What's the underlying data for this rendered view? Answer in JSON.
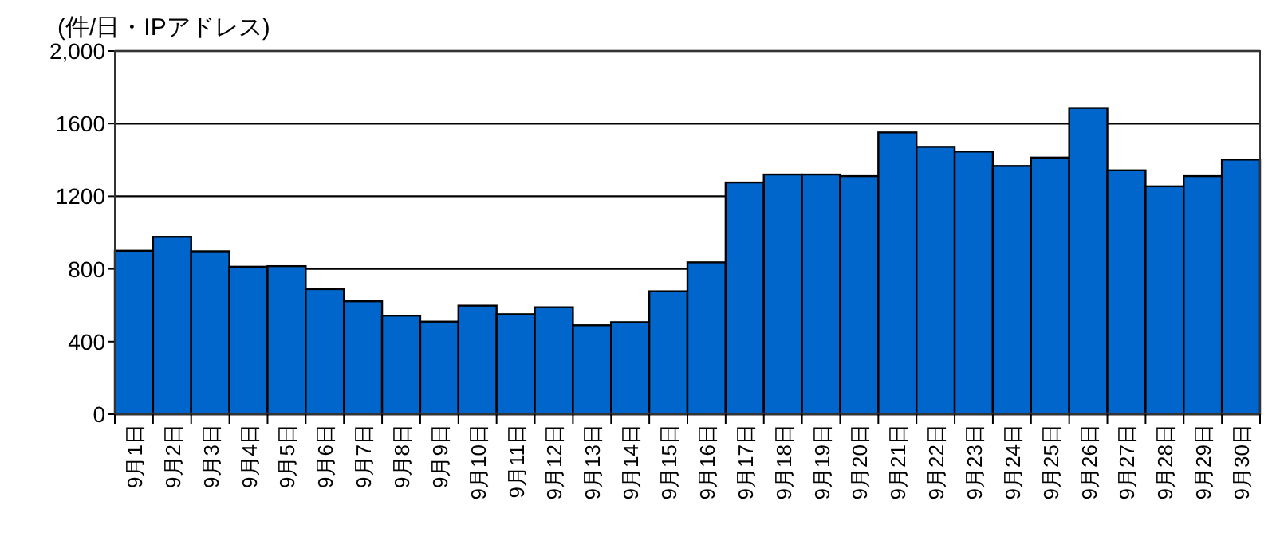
{
  "chart_data": {
    "type": "bar",
    "ylabel": "(件/日・IPアドレス)",
    "categories": [
      "9月1日",
      "9月2日",
      "9月3日",
      "9月4日",
      "9月5日",
      "9月6日",
      "9月7日",
      "9月8日",
      "9月9日",
      "9月10日",
      "9月11日",
      "9月12日",
      "9月13日",
      "9月14日",
      "9月15日",
      "9月16日",
      "9月17日",
      "9月18日",
      "9月19日",
      "9月20日",
      "9月21日",
      "9月22日",
      "9月23日",
      "9月24日",
      "9月25日",
      "9月26日",
      "9月27日",
      "9月28日",
      "9月29日",
      "9月30日"
    ],
    "values": [
      900,
      977,
      897,
      812,
      815,
      689,
      622,
      543,
      510,
      598,
      551,
      589,
      490,
      507,
      677,
      836,
      1276,
      1320,
      1320,
      1311,
      1551,
      1472,
      1446,
      1367,
      1413,
      1686,
      1343,
      1255,
      1311,
      1402
    ],
    "color": "#0066cc",
    "ylim": [
      0,
      2000
    ],
    "yticks": [
      0,
      400,
      800,
      1200,
      1600,
      {
        "value": 2000,
        "label": "2,000"
      }
    ],
    "grid": "y"
  }
}
